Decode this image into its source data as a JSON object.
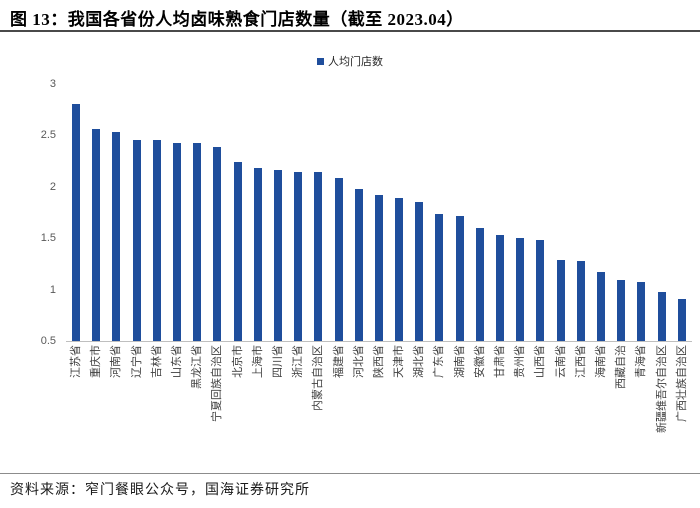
{
  "figure": {
    "title": "图 13：我国各省份人均卤味熟食门店数量（截至 2023.04）",
    "source": "资料来源：窄门餐眼公众号，国海证券研究所"
  },
  "colors": {
    "bar": "#1F4E9C",
    "axis_line": "#BFBFBF",
    "tick_label": "#595959"
  },
  "chart_data": {
    "type": "bar",
    "title": "图 13：我国各省份人均卤味熟食门店数量（截至 2023.04）",
    "legend_label": "人均门店数",
    "legend_position": "top-center",
    "grid": false,
    "ylim": [
      0.5,
      3
    ],
    "yticks": [
      3,
      2.5,
      2,
      1.5,
      1,
      0.5
    ],
    "xlabel": "",
    "ylabel": "",
    "categories": [
      "江苏省",
      "重庆市",
      "河南省",
      "辽宁省",
      "吉林省",
      "山东省",
      "黑龙江省",
      "宁夏回族自治区",
      "北京市",
      "上海市",
      "四川省",
      "浙江省",
      "内蒙古自治区",
      "福建省",
      "河北省",
      "陕西省",
      "天津市",
      "湖北省",
      "广东省",
      "湖南省",
      "安徽省",
      "甘肃省",
      "贵州省",
      "山西省",
      "云南省",
      "江西省",
      "海南省",
      "西藏自治",
      "青海省",
      "新疆维吾尔自治区",
      "广西壮族自治区"
    ],
    "values": [
      2.81,
      2.56,
      2.53,
      2.46,
      2.46,
      2.43,
      2.43,
      2.39,
      2.24,
      2.18,
      2.16,
      2.14,
      2.14,
      2.09,
      1.98,
      1.92,
      1.89,
      1.85,
      1.74,
      1.72,
      1.6,
      1.53,
      1.5,
      1.48,
      1.29,
      1.28,
      1.17,
      1.09,
      1.07,
      0.98,
      0.91
    ]
  }
}
